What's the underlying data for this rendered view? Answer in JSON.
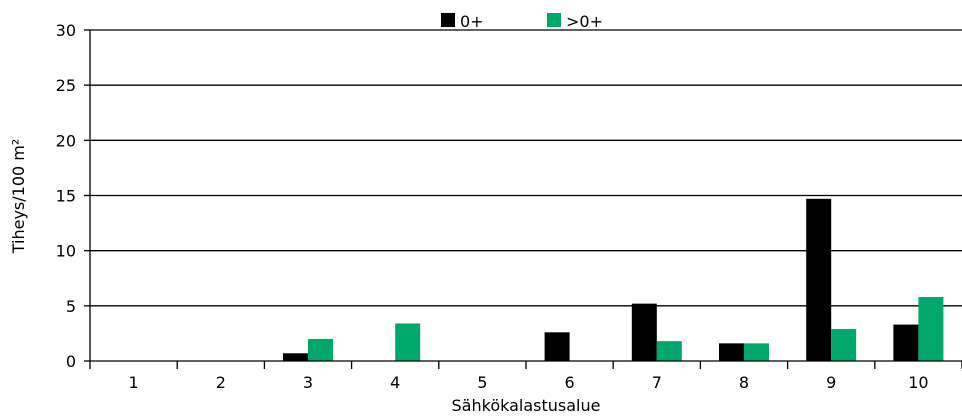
{
  "chart_data": {
    "type": "bar",
    "categories": [
      "1",
      "2",
      "3",
      "4",
      "5",
      "6",
      "7",
      "8",
      "9",
      "10"
    ],
    "series": [
      {
        "name": "0+",
        "color": "#000000",
        "values": [
          0,
          0,
          0.7,
          0,
          0,
          2.6,
          5.2,
          1.6,
          14.7,
          3.3
        ]
      },
      {
        "name": ">0+",
        "color": "#00a86b",
        "values": [
          0,
          0,
          2.0,
          3.4,
          0,
          0,
          1.8,
          1.6,
          2.9,
          5.8
        ]
      }
    ],
    "xlabel": "Sähkökalastusalue",
    "ylabel": "Tiheys/100 m²",
    "ylim": [
      0,
      30
    ],
    "yticks": [
      "0",
      "5",
      "10",
      "15",
      "20",
      "25",
      "30"
    ],
    "grid": true,
    "legend_position": "top"
  }
}
